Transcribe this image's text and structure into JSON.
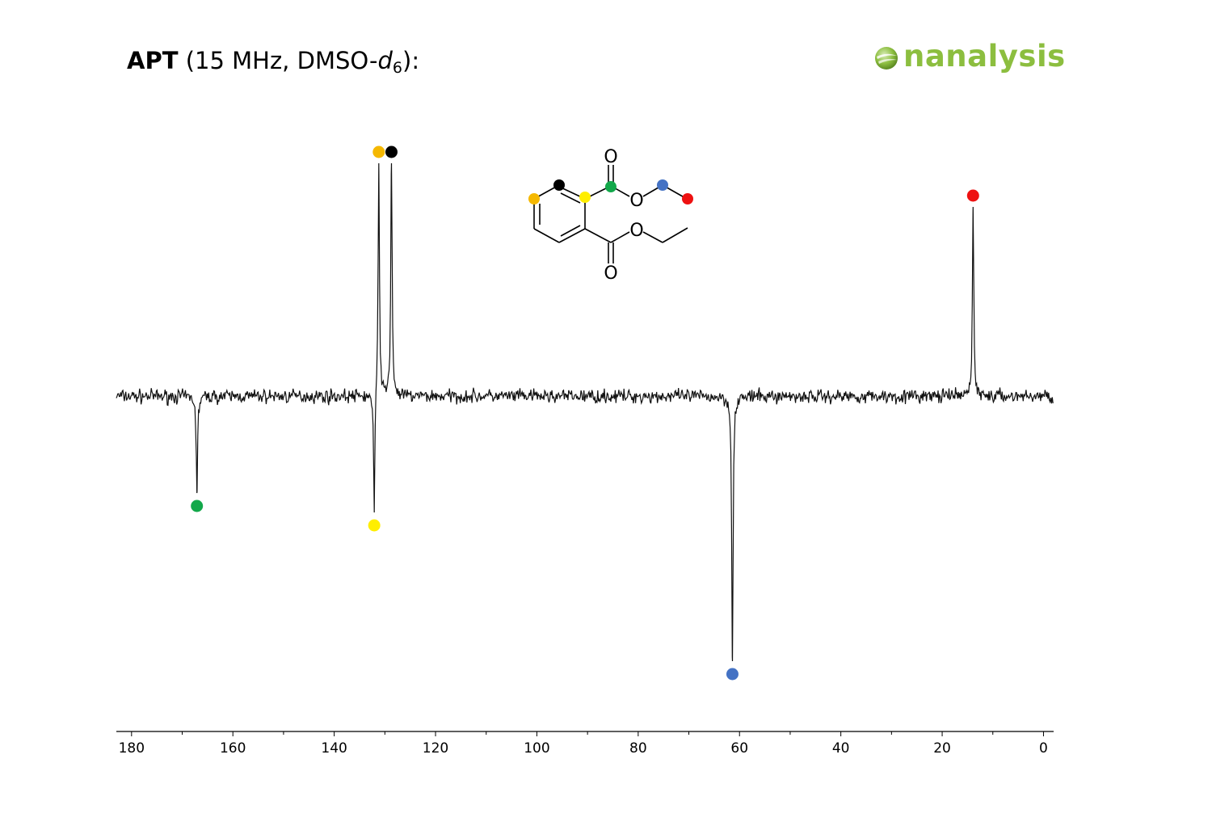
{
  "header": {
    "title_bold": "APT",
    "title_rest": " (15 MHz, DMSO-",
    "title_italic": "d",
    "title_sub": "6",
    "title_end": "):"
  },
  "logo": {
    "text": "nanalysis",
    "color": "#8cbe3f"
  },
  "chart_data": {
    "type": "line",
    "xlim": [
      183,
      -2
    ],
    "x_reversed": true,
    "xticks": [
      180,
      160,
      140,
      120,
      100,
      80,
      60,
      40,
      20,
      0
    ],
    "ylim": [
      -1.0,
      0.85
    ],
    "peaks": [
      {
        "ppm": 167.1,
        "intensity": -0.3,
        "color": "#12a84a",
        "label": "carbonyl C"
      },
      {
        "ppm": 132.1,
        "intensity": -0.36,
        "color": "#ffee00",
        "label": "quaternary aromatic C"
      },
      {
        "ppm": 131.2,
        "intensity": 0.8,
        "color": "#f5b800",
        "label": "aromatic CH"
      },
      {
        "ppm": 128.7,
        "intensity": 0.8,
        "color": "#000000",
        "label": "aromatic CH"
      },
      {
        "ppm": 61.4,
        "intensity": -0.82,
        "color": "#4472c4",
        "label": "OCH2"
      },
      {
        "ppm": 13.9,
        "intensity": 0.65,
        "color": "#ee1111",
        "label": "CH3"
      }
    ]
  },
  "structure": {
    "atom_labels": [
      "O",
      "O",
      "O",
      "O"
    ]
  }
}
